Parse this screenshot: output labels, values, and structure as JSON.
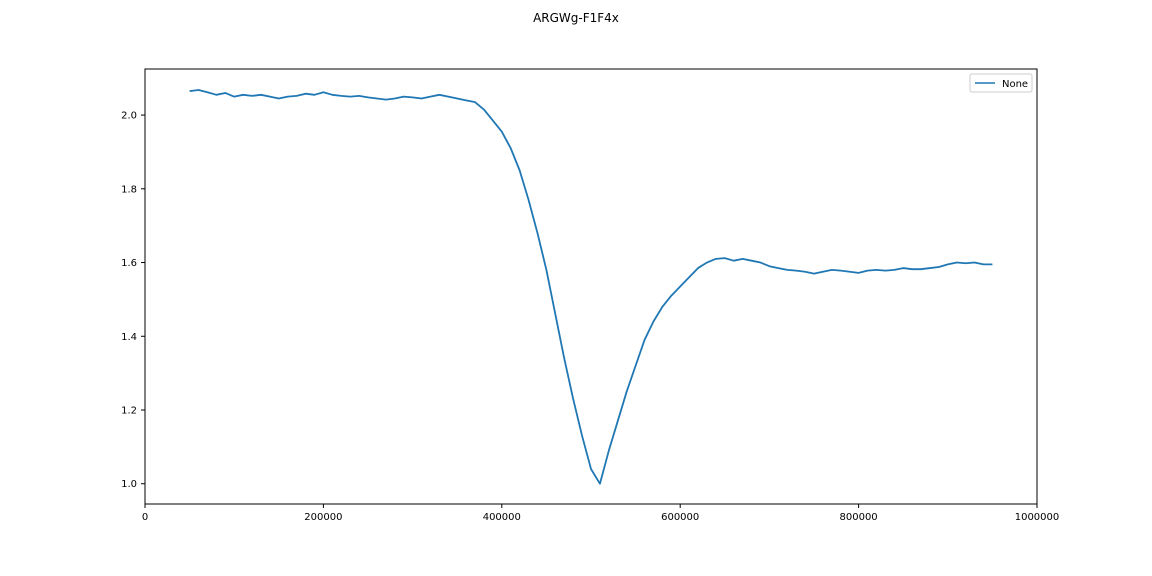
{
  "chart_data": {
    "type": "line",
    "title": "ARGWg-F1F4x",
    "xlabel": "",
    "ylabel": "",
    "xlim": [
      0,
      1000000
    ],
    "ylim": [
      0.945,
      2.125
    ],
    "x_ticks": [
      0,
      200000,
      400000,
      600000,
      800000,
      1000000
    ],
    "y_ticks": [
      1.0,
      1.2,
      1.4,
      1.6,
      1.8,
      2.0
    ],
    "x_tick_labels": [
      "0",
      "200000",
      "400000",
      "600000",
      "800000",
      "1000000"
    ],
    "y_tick_labels": [
      "1.0",
      "1.2",
      "1.4",
      "1.6",
      "1.8",
      "2.0"
    ],
    "grid": false,
    "legend": {
      "placement": "top-right",
      "entries": [
        "None"
      ]
    },
    "series": [
      {
        "name": "None",
        "color": "#1f77b4",
        "x": [
          50000,
          60000,
          70000,
          80000,
          90000,
          100000,
          110000,
          120000,
          130000,
          140000,
          150000,
          160000,
          170000,
          180000,
          190000,
          200000,
          210000,
          220000,
          230000,
          240000,
          250000,
          260000,
          270000,
          280000,
          290000,
          300000,
          310000,
          320000,
          330000,
          340000,
          350000,
          360000,
          370000,
          380000,
          390000,
          400000,
          410000,
          420000,
          430000,
          440000,
          450000,
          460000,
          470000,
          480000,
          490000,
          500000,
          510000,
          520000,
          530000,
          540000,
          550000,
          560000,
          570000,
          580000,
          590000,
          600000,
          610000,
          620000,
          630000,
          640000,
          650000,
          660000,
          670000,
          680000,
          690000,
          700000,
          710000,
          720000,
          730000,
          740000,
          750000,
          760000,
          770000,
          780000,
          790000,
          800000,
          810000,
          820000,
          830000,
          840000,
          850000,
          860000,
          870000,
          880000,
          890000,
          900000,
          910000,
          920000,
          930000,
          940000,
          950000
        ],
        "y": [
          2.065,
          2.068,
          2.062,
          2.055,
          2.06,
          2.05,
          2.055,
          2.052,
          2.055,
          2.05,
          2.045,
          2.05,
          2.052,
          2.058,
          2.055,
          2.062,
          2.055,
          2.052,
          2.05,
          2.052,
          2.048,
          2.045,
          2.042,
          2.045,
          2.05,
          2.048,
          2.045,
          2.05,
          2.055,
          2.05,
          2.045,
          2.04,
          2.035,
          2.015,
          1.985,
          1.955,
          1.91,
          1.85,
          1.77,
          1.68,
          1.58,
          1.46,
          1.34,
          1.23,
          1.13,
          1.04,
          1.0,
          1.09,
          1.17,
          1.25,
          1.32,
          1.39,
          1.44,
          1.48,
          1.51,
          1.535,
          1.56,
          1.585,
          1.6,
          1.61,
          1.612,
          1.605,
          1.61,
          1.605,
          1.6,
          1.59,
          1.585,
          1.58,
          1.578,
          1.575,
          1.57,
          1.575,
          1.58,
          1.578,
          1.575,
          1.572,
          1.578,
          1.58,
          1.578,
          1.58,
          1.585,
          1.582,
          1.582,
          1.585,
          1.588,
          1.595,
          1.6,
          1.598,
          1.6,
          1.595,
          1.595
        ]
      }
    ]
  }
}
